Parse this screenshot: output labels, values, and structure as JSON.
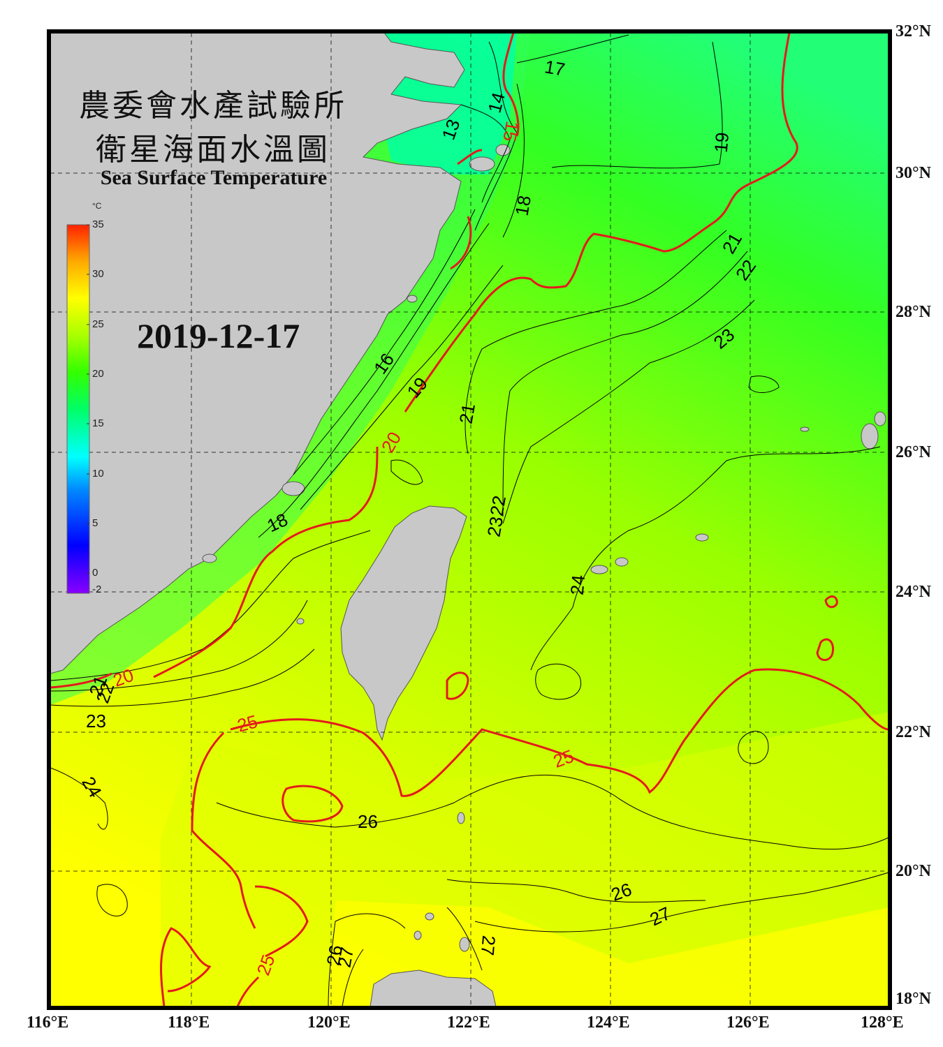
{
  "header": {
    "title_zh_line1": "農委會水產試驗所",
    "title_zh_line2": "衛星海面水溫圖",
    "title_en": "Sea Surface Temperature",
    "date": "2019-12-17"
  },
  "colorbar": {
    "unit": "°C",
    "min": -2,
    "max": 35,
    "ticks": [
      "35",
      "30",
      "25",
      "20",
      "15",
      "10",
      "5",
      "0",
      "-2"
    ]
  },
  "axes": {
    "lat_labels": [
      "32°N",
      "30°N",
      "28°N",
      "26°N",
      "24°N",
      "22°N",
      "20°N",
      "18°N"
    ],
    "lon_labels": [
      "116°E",
      "118°E",
      "120°E",
      "122°E",
      "124°E",
      "126°E",
      "128°E"
    ]
  },
  "contour_labels": {
    "red": [
      "15",
      "20",
      "20",
      "25",
      "25",
      "25"
    ],
    "black": [
      "17",
      "14",
      "13",
      "19",
      "18",
      "21",
      "22",
      "23",
      "16",
      "19",
      "21",
      "22",
      "23",
      "24",
      "18",
      "21",
      "22",
      "23",
      "24",
      "26",
      "26",
      "27",
      "26",
      "27",
      "27"
    ]
  },
  "colors": {
    "land": "#c8c8c8",
    "frame": "#000000",
    "contour_red": "#e41a1c",
    "contour_black": "#000000",
    "sea_warm": "#ffff00",
    "sea_mid": "#99ff00",
    "sea_cool": "#00ff66",
    "sea_cold": "#00ffcc"
  }
}
